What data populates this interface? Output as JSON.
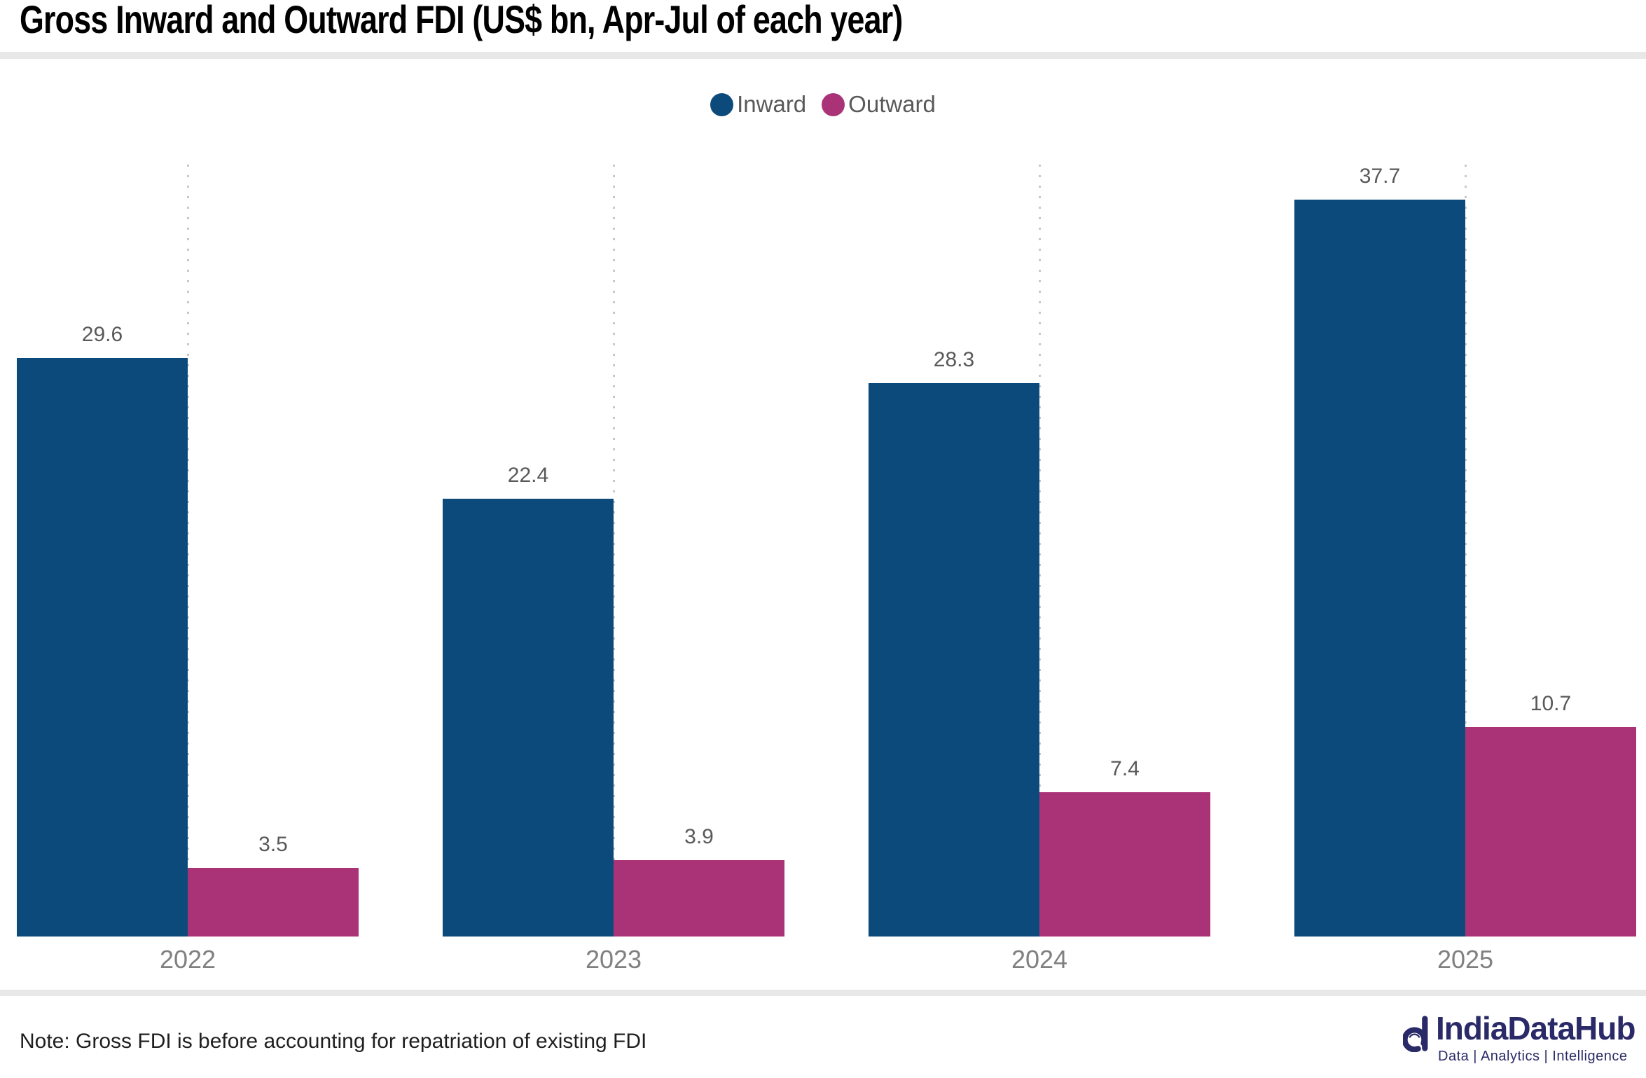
{
  "header": {
    "title": "Gross Inward and Outward FDI (US$ bn, Apr-Jul of each year)"
  },
  "legend": [
    {
      "label": "Inward",
      "color": "#0C4A7C"
    },
    {
      "label": "Outward",
      "color": "#AA3378"
    }
  ],
  "chart_data": {
    "type": "bar",
    "title": "Gross Inward and Outward FDI (US$ bn, Apr-Jul of each year)",
    "categories": [
      "2022",
      "2023",
      "2024",
      "2025"
    ],
    "series": [
      {
        "name": "Inward",
        "color": "#0C4A7C",
        "values": [
          29.6,
          22.4,
          28.3,
          37.7
        ]
      },
      {
        "name": "Outward",
        "color": "#AA3378",
        "values": [
          3.5,
          3.9,
          7.4,
          10.7
        ]
      }
    ],
    "xlabel": "",
    "ylabel": "",
    "ylim": [
      0,
      40
    ],
    "grid": "dotted vertical line at each category center",
    "legend_position": "top-center",
    "value_labels": true,
    "gridline_color": "#c8c8c8",
    "value_label_color": "#595959",
    "axis_label_color": "#808080"
  },
  "footer": {
    "note": "Note: Gross FDI is before accounting for repatriation of existing FDI"
  },
  "logo": {
    "name": "IndiaDataHub",
    "tagline": "Data | Analytics | Intelligence",
    "color": "#2b2a68",
    "icon": "magnifier-d-icon"
  }
}
